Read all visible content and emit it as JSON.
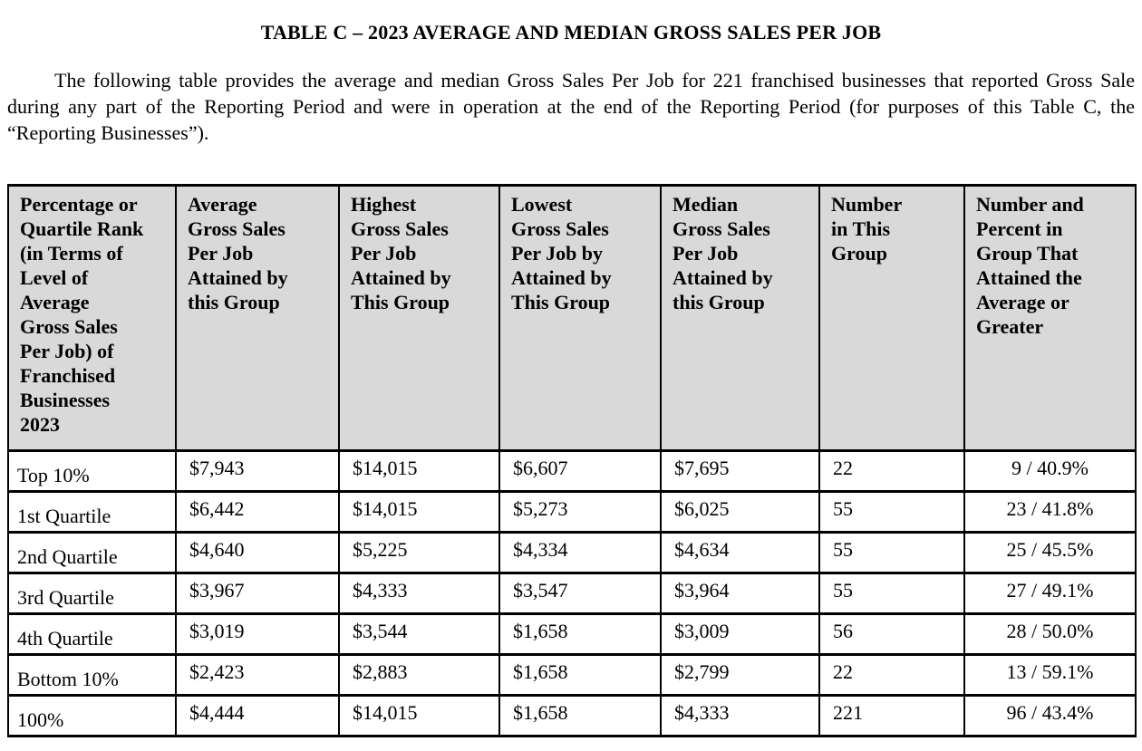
{
  "title": "TABLE C – 2023 AVERAGE AND MEDIAN GROSS SALES PER JOB",
  "intro": "The following table provides the average and median Gross Sales Per Job for 221 franchised businesses that reported Gross Sale during any part of the Reporting Period and were in operation at the end of the Reporting Period (for purposes of this Table C, the “Reporting Businesses”).",
  "table": {
    "headers": [
      "Percentage or\nQuartile Rank\n(in Terms of\nLevel of\nAverage\nGross Sales\nPer Job) of\nFranchised\nBusinesses\n2023",
      "Average\nGross Sales\nPer Job\nAttained by\nthis Group",
      "Highest\nGross Sales\nPer Job\nAttained by\nThis Group",
      "Lowest\nGross Sales\nPer Job by\nAttained by\nThis Group",
      "Median\nGross Sales\nPer Job\nAttained by\nthis Group",
      "Number\nin This\nGroup",
      "Number and\nPercent in\nGroup That\nAttained the\nAverage or\nGreater"
    ],
    "rows": [
      [
        "Top 10%",
        "$7,943",
        "$14,015",
        "$6,607",
        "$7,695",
        "22",
        "9 / 40.9%"
      ],
      [
        "1st Quartile",
        "$6,442",
        "$14,015",
        "$5,273",
        "$6,025",
        "55",
        "23 / 41.8%"
      ],
      [
        "2nd Quartile",
        "$4,640",
        "$5,225",
        "$4,334",
        "$4,634",
        "55",
        "25 / 45.5%"
      ],
      [
        "3rd Quartile",
        "$3,967",
        "$4,333",
        "$3,547",
        "$3,964",
        "55",
        "27 / 49.1%"
      ],
      [
        "4th Quartile",
        "$3,019",
        "$3,544",
        "$1,658",
        "$3,009",
        "56",
        "28 / 50.0%"
      ],
      [
        "Bottom 10%",
        "$2,423",
        "$2,883",
        "$1,658",
        "$2,799",
        "22",
        "13 / 59.1%"
      ],
      [
        "100%",
        "$4,444",
        "$14,015",
        "$1,658",
        "$4,333",
        "221",
        "96 / 43.4%"
      ]
    ]
  },
  "colors": {
    "header_bg": "#d9d9d9",
    "border": "#000000",
    "text": "#000000",
    "page_bg": "#ffffff"
  }
}
